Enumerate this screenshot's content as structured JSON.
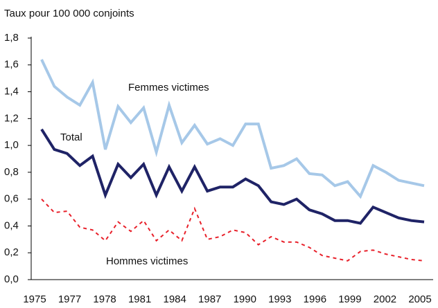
{
  "chart_data": {
    "type": "line",
    "y_axis_label": "Taux pour 100 000 conjoints",
    "x": [
      1975,
      1976,
      1977,
      1978,
      1979,
      1980,
      1981,
      1982,
      1983,
      1984,
      1985,
      1986,
      1987,
      1988,
      1989,
      1990,
      1991,
      1992,
      1993,
      1994,
      1995,
      1996,
      1997,
      1998,
      1999,
      2000,
      2001,
      2002,
      2003,
      2004,
      2005
    ],
    "xlim": [
      1975,
      2005
    ],
    "xtick_labels": [
      "1975",
      "1977",
      "1978",
      "1981",
      "1984",
      "1987",
      "1990",
      "1993",
      "1996",
      "1999",
      "2002",
      "2005"
    ],
    "ylim": [
      0,
      1.8
    ],
    "yticks": [
      {
        "value": 0,
        "label": "0,0"
      },
      {
        "value": 0.2,
        "label": "0,2"
      },
      {
        "value": 0.4,
        "label": "0,4"
      },
      {
        "value": 0.6,
        "label": "0,6"
      },
      {
        "value": 0.8,
        "label": "0,8"
      },
      {
        "value": 1,
        "label": "1,0"
      },
      {
        "value": 1.2,
        "label": "1,2"
      },
      {
        "value": 1.4,
        "label": "1,4"
      },
      {
        "value": 1.6,
        "label": "1,6"
      },
      {
        "value": 1.8,
        "label": "1,8"
      }
    ],
    "grid": false,
    "series": [
      {
        "name": "Femmes victimes",
        "color": "#a6c8e8",
        "dash": false,
        "values": [
          1.64,
          1.44,
          1.36,
          1.3,
          1.47,
          0.97,
          1.29,
          1.17,
          1.28,
          0.95,
          1.3,
          1.02,
          1.15,
          1.01,
          1.05,
          1.0,
          1.16,
          1.16,
          0.83,
          0.85,
          0.9,
          0.79,
          0.78,
          0.7,
          0.73,
          0.62,
          0.85,
          0.8,
          0.74,
          0.72,
          0.7
        ]
      },
      {
        "name": "Total",
        "color": "#1f2366",
        "dash": false,
        "values": [
          1.12,
          0.97,
          0.94,
          0.85,
          0.92,
          0.63,
          0.86,
          0.76,
          0.86,
          0.63,
          0.84,
          0.66,
          0.84,
          0.66,
          0.69,
          0.69,
          0.75,
          0.7,
          0.58,
          0.56,
          0.6,
          0.52,
          0.49,
          0.44,
          0.44,
          0.42,
          0.54,
          0.5,
          0.46,
          0.44,
          0.43
        ]
      },
      {
        "name": "Hommes victimes",
        "color": "#e8202a",
        "dash": true,
        "values": [
          0.6,
          0.5,
          0.51,
          0.39,
          0.37,
          0.29,
          0.43,
          0.36,
          0.44,
          0.29,
          0.37,
          0.29,
          0.53,
          0.3,
          0.32,
          0.37,
          0.35,
          0.26,
          0.32,
          0.28,
          0.28,
          0.24,
          0.18,
          0.16,
          0.14,
          0.21,
          0.22,
          0.19,
          0.17,
          0.15,
          0.14
        ]
      }
    ]
  }
}
